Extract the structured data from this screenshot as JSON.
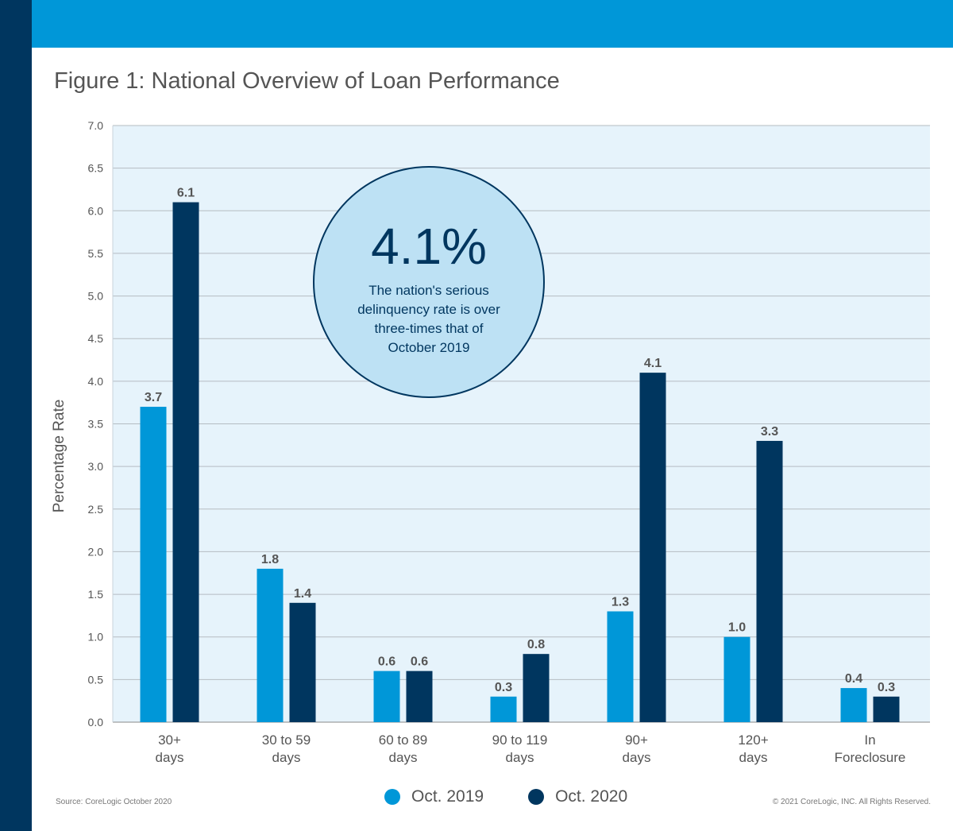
{
  "page": {
    "title": "Figure 1: National Overview of Loan Performance",
    "source": "Source: CoreLogic October 2020",
    "copyright": "© 2021 CoreLogic, INC. All Rights Reserved."
  },
  "callout": {
    "value": "4.1%",
    "text": "The nation's serious delinquency rate is over three-times that of October 2019"
  },
  "colors": {
    "sidebar": "#00365f",
    "topbar": "#0097d8",
    "plot_bg": "#e6f3fb",
    "series_2019": "#0097d8",
    "series_2020": "#00365f",
    "callout_fill": "#bde1f4"
  },
  "chart_data": {
    "type": "bar",
    "title": "Figure 1: National Overview of Loan Performance",
    "xlabel": "",
    "ylabel": "Percentage Rate",
    "ylim": [
      0,
      7.0
    ],
    "y_ticks": [
      "0.0",
      "0.5",
      "1.0",
      "1.5",
      "2.0",
      "2.5",
      "3.0",
      "3.5",
      "4.0",
      "4.5",
      "5.0",
      "5.5",
      "6.0",
      "6.5",
      "7.0"
    ],
    "grid": true,
    "legend_position": "bottom",
    "categories": [
      [
        "30+",
        "days"
      ],
      [
        "30 to 59",
        "days"
      ],
      [
        "60 to 89",
        "days"
      ],
      [
        "90 to 119",
        "days"
      ],
      [
        "90+",
        "days"
      ],
      [
        "120+",
        "days"
      ],
      [
        "In",
        "Foreclosure"
      ]
    ],
    "series": [
      {
        "name": "Oct. 2019",
        "color": "#0097d8",
        "values": [
          3.7,
          1.8,
          0.6,
          0.3,
          1.3,
          1.0,
          0.4
        ],
        "labels": [
          "3.7",
          "1.8",
          "0.6",
          "0.3",
          "1.3",
          "1.0",
          "0.4"
        ]
      },
      {
        "name": "Oct. 2020",
        "color": "#00365f",
        "values": [
          6.1,
          1.4,
          0.6,
          0.8,
          4.1,
          3.3,
          0.3
        ],
        "labels": [
          "6.1",
          "1.4",
          "0.6",
          "0.8",
          "4.1",
          "3.3",
          "0.3"
        ]
      }
    ]
  }
}
